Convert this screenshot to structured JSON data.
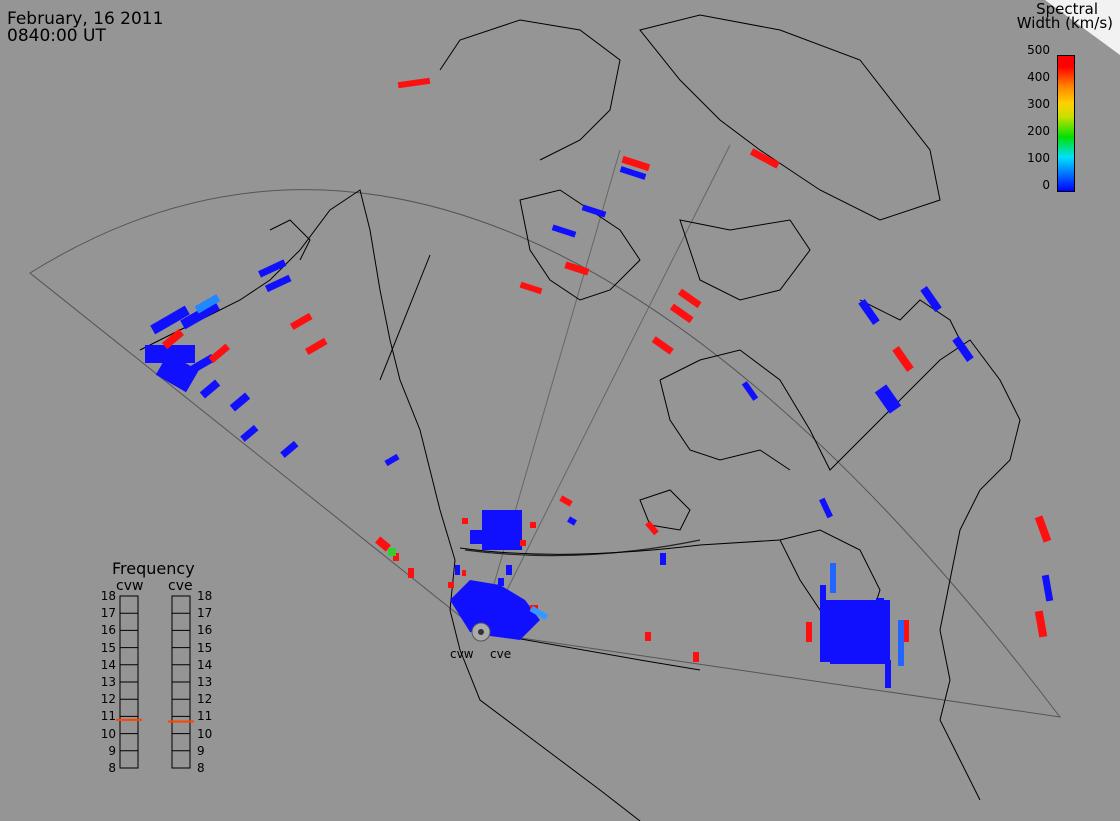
{
  "header": {
    "date": "February, 16 2011",
    "time": "0840:00 UT"
  },
  "colorbar": {
    "title_line1": "Spectral",
    "title_line2": "Width (km/s)",
    "ticks": [
      "500",
      "400",
      "300",
      "200",
      "100",
      "0"
    ],
    "colors": {
      "low": "#0000ff",
      "mid": "#00e000",
      "high": "#ff0000"
    }
  },
  "stations": {
    "west": "cvw",
    "east": "cve"
  },
  "frequency": {
    "title": "Frequency",
    "left_label": "cvw",
    "right_label": "cve",
    "scale": [
      "18",
      "17",
      "16",
      "15",
      "14",
      "13",
      "12",
      "11",
      "10",
      "9",
      "8"
    ],
    "cvw_mhz": 10.8,
    "cve_mhz": 10.7
  }
}
